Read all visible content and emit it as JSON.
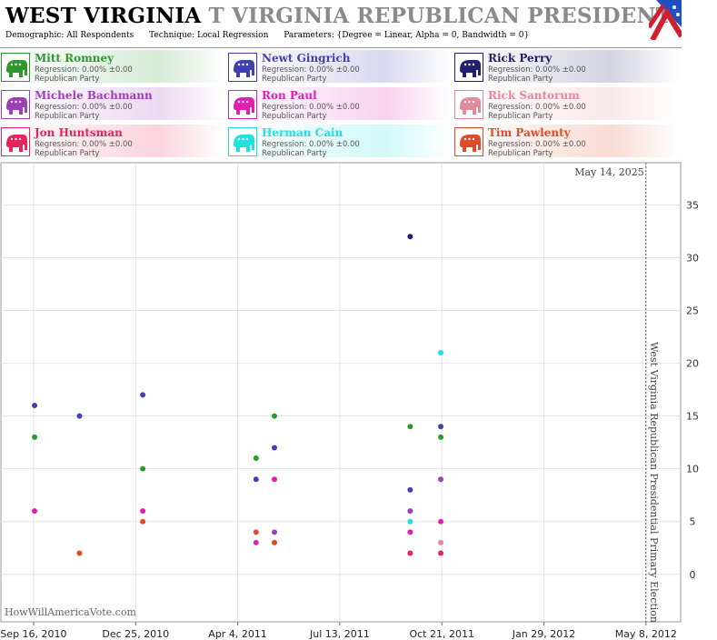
{
  "header": {
    "state": "WEST VIRGINIA",
    "title_rest": "T VIRGINIA REPUBLICAN PRESIDENTIAL PRIMA",
    "demographic": "Demographic: All Respondents",
    "technique": "Technique: Local Regression",
    "parameters": "Parameters: {Degree = Linear, Alpha = 0, Bandwidth = 0}"
  },
  "candidates": [
    {
      "name": "Mitt Romney",
      "regression": "Regression: 0.00% ±0.00",
      "party": "Republican Party",
      "color": "#2e9a2e",
      "icon": "elephant-icon"
    },
    {
      "name": "Newt Gingrich",
      "regression": "Regression: 0.00% ±0.00",
      "party": "Republican Party",
      "color": "#4040b0",
      "icon": "elephant-icon"
    },
    {
      "name": "Rick Perry",
      "regression": "Regression: 0.00% ±0.00",
      "party": "Republican Party",
      "color": "#22206a",
      "icon": "elephant-icon"
    },
    {
      "name": "Michele Bachmann",
      "regression": "Regression: 0.00% ±0.00",
      "party": "Republican Party",
      "color": "#9c3fb8",
      "icon": "elephant-icon"
    },
    {
      "name": "Ron Paul",
      "regression": "Regression: 0.00% ±0.00",
      "party": "Republican Party",
      "color": "#e020b0",
      "icon": "elephant-icon"
    },
    {
      "name": "Rick Santorum",
      "regression": "Regression: 0.00% ±0.00",
      "party": "Republican Party",
      "color": "#e08a9a",
      "icon": "elephant-icon"
    },
    {
      "name": "Jon Huntsman",
      "regression": "Regression: 0.00% ±0.00",
      "party": "Republican Party",
      "color": "#e8245a",
      "icon": "elephant-icon"
    },
    {
      "name": "Herman Cain",
      "regression": "Regression: 0.00% ±0.00",
      "party": "Republican Party",
      "color": "#20e0e0",
      "icon": "elephant-icon"
    },
    {
      "name": "Tim Pawlenty",
      "regression": "Regression: 0.00% ±0.00",
      "party": "Republican Party",
      "color": "#e04a2a",
      "icon": "elephant-icon"
    }
  ],
  "chart_data": {
    "type": "scatter",
    "x_tick_labels": [
      "Sep 16, 2010",
      "Dec 25, 2010",
      "Apr 4, 2011",
      "Jul 13, 2011",
      "Oct 21, 2011",
      "Jan 29, 2012",
      "May 8, 2012"
    ],
    "x_range": [
      "2010-08-15",
      "2012-06-11"
    ],
    "y_ticks": [
      0,
      5,
      10,
      15,
      20,
      25,
      30,
      35
    ],
    "ylim": [
      -4.5,
      39
    ],
    "grid": true,
    "today_label": "May 14, 2025",
    "election_date": "2012-05-08",
    "election_label": "West Virginia Republican Presidential Primary Election",
    "watermark": "HowWillAmericaVote.com",
    "series": [
      {
        "name": "Mitt Romney",
        "color": "#2e9a2e",
        "points": [
          [
            "2010-09-17",
            13
          ],
          [
            "2011-01-01",
            10
          ],
          [
            "2011-04-22",
            11
          ],
          [
            "2011-05-10",
            15
          ],
          [
            "2011-09-20",
            14
          ],
          [
            "2011-10-20",
            13
          ]
        ]
      },
      {
        "name": "Newt Gingrich",
        "color": "#4040b0",
        "points": [
          [
            "2010-09-17",
            16
          ],
          [
            "2010-10-31",
            15
          ],
          [
            "2011-01-01",
            17
          ],
          [
            "2011-04-22",
            9
          ],
          [
            "2011-05-10",
            12
          ],
          [
            "2011-09-20",
            8
          ],
          [
            "2011-10-20",
            14
          ]
        ]
      },
      {
        "name": "Rick Perry",
        "color": "#22206a",
        "points": [
          [
            "2011-09-20",
            32
          ]
        ]
      },
      {
        "name": "Michele Bachmann",
        "color": "#9c3fb8",
        "points": [
          [
            "2011-05-10",
            4
          ],
          [
            "2011-09-20",
            6
          ],
          [
            "2011-10-20",
            9
          ]
        ]
      },
      {
        "name": "Ron Paul",
        "color": "#e020b0",
        "points": [
          [
            "2010-09-17",
            6
          ],
          [
            "2011-01-01",
            6
          ],
          [
            "2011-04-22",
            3
          ],
          [
            "2011-05-10",
            9
          ],
          [
            "2011-09-20",
            4
          ],
          [
            "2011-10-20",
            5
          ]
        ]
      },
      {
        "name": "Rick Santorum",
        "color": "#e08a9a",
        "points": [
          [
            "2011-10-20",
            3
          ]
        ]
      },
      {
        "name": "Jon Huntsman",
        "color": "#e8245a",
        "points": [
          [
            "2011-09-20",
            2
          ],
          [
            "2011-10-20",
            2
          ]
        ]
      },
      {
        "name": "Herman Cain",
        "color": "#20e0e0",
        "points": [
          [
            "2011-09-20",
            5
          ],
          [
            "2011-10-20",
            21
          ]
        ]
      },
      {
        "name": "Tim Pawlenty",
        "color": "#e04a2a",
        "points": [
          [
            "2010-10-31",
            2
          ],
          [
            "2011-01-01",
            5
          ],
          [
            "2011-04-22",
            4
          ],
          [
            "2011-05-10",
            3
          ]
        ]
      }
    ]
  }
}
